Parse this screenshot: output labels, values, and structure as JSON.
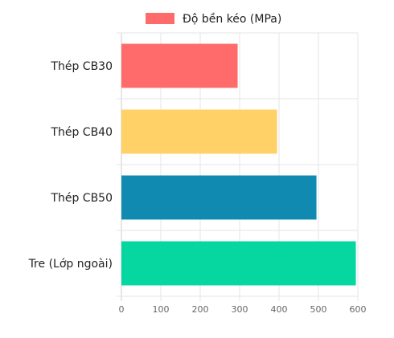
{
  "chart_data": {
    "type": "bar",
    "orientation": "horizontal",
    "categories": [
      "Thép CB30",
      "Thép CB40",
      "Thép CB50",
      "Tre (Lớp ngoài)"
    ],
    "series": [
      {
        "name": "Độ bền kéo (MPa)",
        "values": [
          295,
          395,
          495,
          595
        ]
      }
    ],
    "bar_colors": [
      "#ff6b6b",
      "#ffd166",
      "#118ab2",
      "#06d6a0"
    ],
    "legend_color": "#ff6b6b",
    "xlim": [
      0,
      600
    ],
    "x_ticks": [
      "0",
      "100",
      "200",
      "300",
      "400",
      "500",
      "600"
    ],
    "grid": true,
    "legend_position": "top-center"
  }
}
